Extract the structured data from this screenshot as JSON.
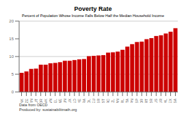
{
  "chart_data": {
    "type": "bar",
    "title": "Poverty Rate",
    "subtitle": "Percent of Population Whose Income Falls Below Half the Median Household Income",
    "annotations": [
      "Data from OECD",
      "Produced by: sustainabilitmath.org"
    ],
    "categories": [
      "DNK",
      "CZE",
      "FIN",
      "AUT",
      "NOR",
      "SVK",
      "SVN",
      "BEL",
      "SWE",
      "HUN",
      "LUX",
      "NLD",
      "CHE",
      "FRA",
      "POL",
      "DEU",
      "ISR",
      "EST",
      "GRC",
      "NZL",
      "CAN",
      "IRL",
      "ITA",
      "JPN",
      "ESP",
      "KOR",
      "PRT",
      "GBR",
      "AUS",
      "TUR",
      "CHL",
      "MEX",
      "USA"
    ],
    "values": [
      5.4,
      5.8,
      6.5,
      6.6,
      7.7,
      7.7,
      8.1,
      8.2,
      8.4,
      8.8,
      8.8,
      9.0,
      9.2,
      9.3,
      10.1,
      10.2,
      10.3,
      10.4,
      11.1,
      11.2,
      11.4,
      11.9,
      12.8,
      13.5,
      14.1,
      14.2,
      14.9,
      15.2,
      15.8,
      16.0,
      16.5,
      17.0,
      18.0
    ],
    "color": "#cc0000",
    "ylim": [
      0,
      20
    ],
    "yticks": [
      0,
      5,
      10,
      15,
      20
    ],
    "grid": true
  }
}
